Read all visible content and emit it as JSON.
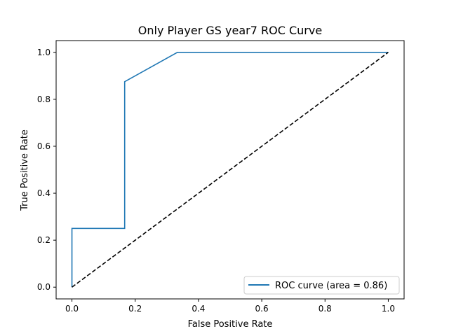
{
  "chart_data": {
    "type": "line",
    "title": "Only Player GS year7 ROC Curve",
    "xlabel": "False Positive Rate",
    "ylabel": "True Positive Rate",
    "xlim": [
      -0.05,
      1.05
    ],
    "ylim": [
      -0.05,
      1.05
    ],
    "xticks": [
      "0.0",
      "0.2",
      "0.4",
      "0.6",
      "0.8",
      "1.0"
    ],
    "yticks": [
      "0.0",
      "0.2",
      "0.4",
      "0.6",
      "0.8",
      "1.0"
    ],
    "grid": false,
    "legend_position": "lower right",
    "series": [
      {
        "name": "ROC curve (area = 0.86)",
        "color": "#1f77b4",
        "style": "solid",
        "x": [
          0.0,
          0.0,
          0.1667,
          0.1667,
          0.3333,
          1.0
        ],
        "y": [
          0.0,
          0.25,
          0.25,
          0.875,
          1.0,
          1.0
        ]
      },
      {
        "color": "#000000",
        "style": "dashed",
        "x": [
          0.0,
          1.0
        ],
        "y": [
          0.0,
          1.0
        ]
      }
    ]
  }
}
